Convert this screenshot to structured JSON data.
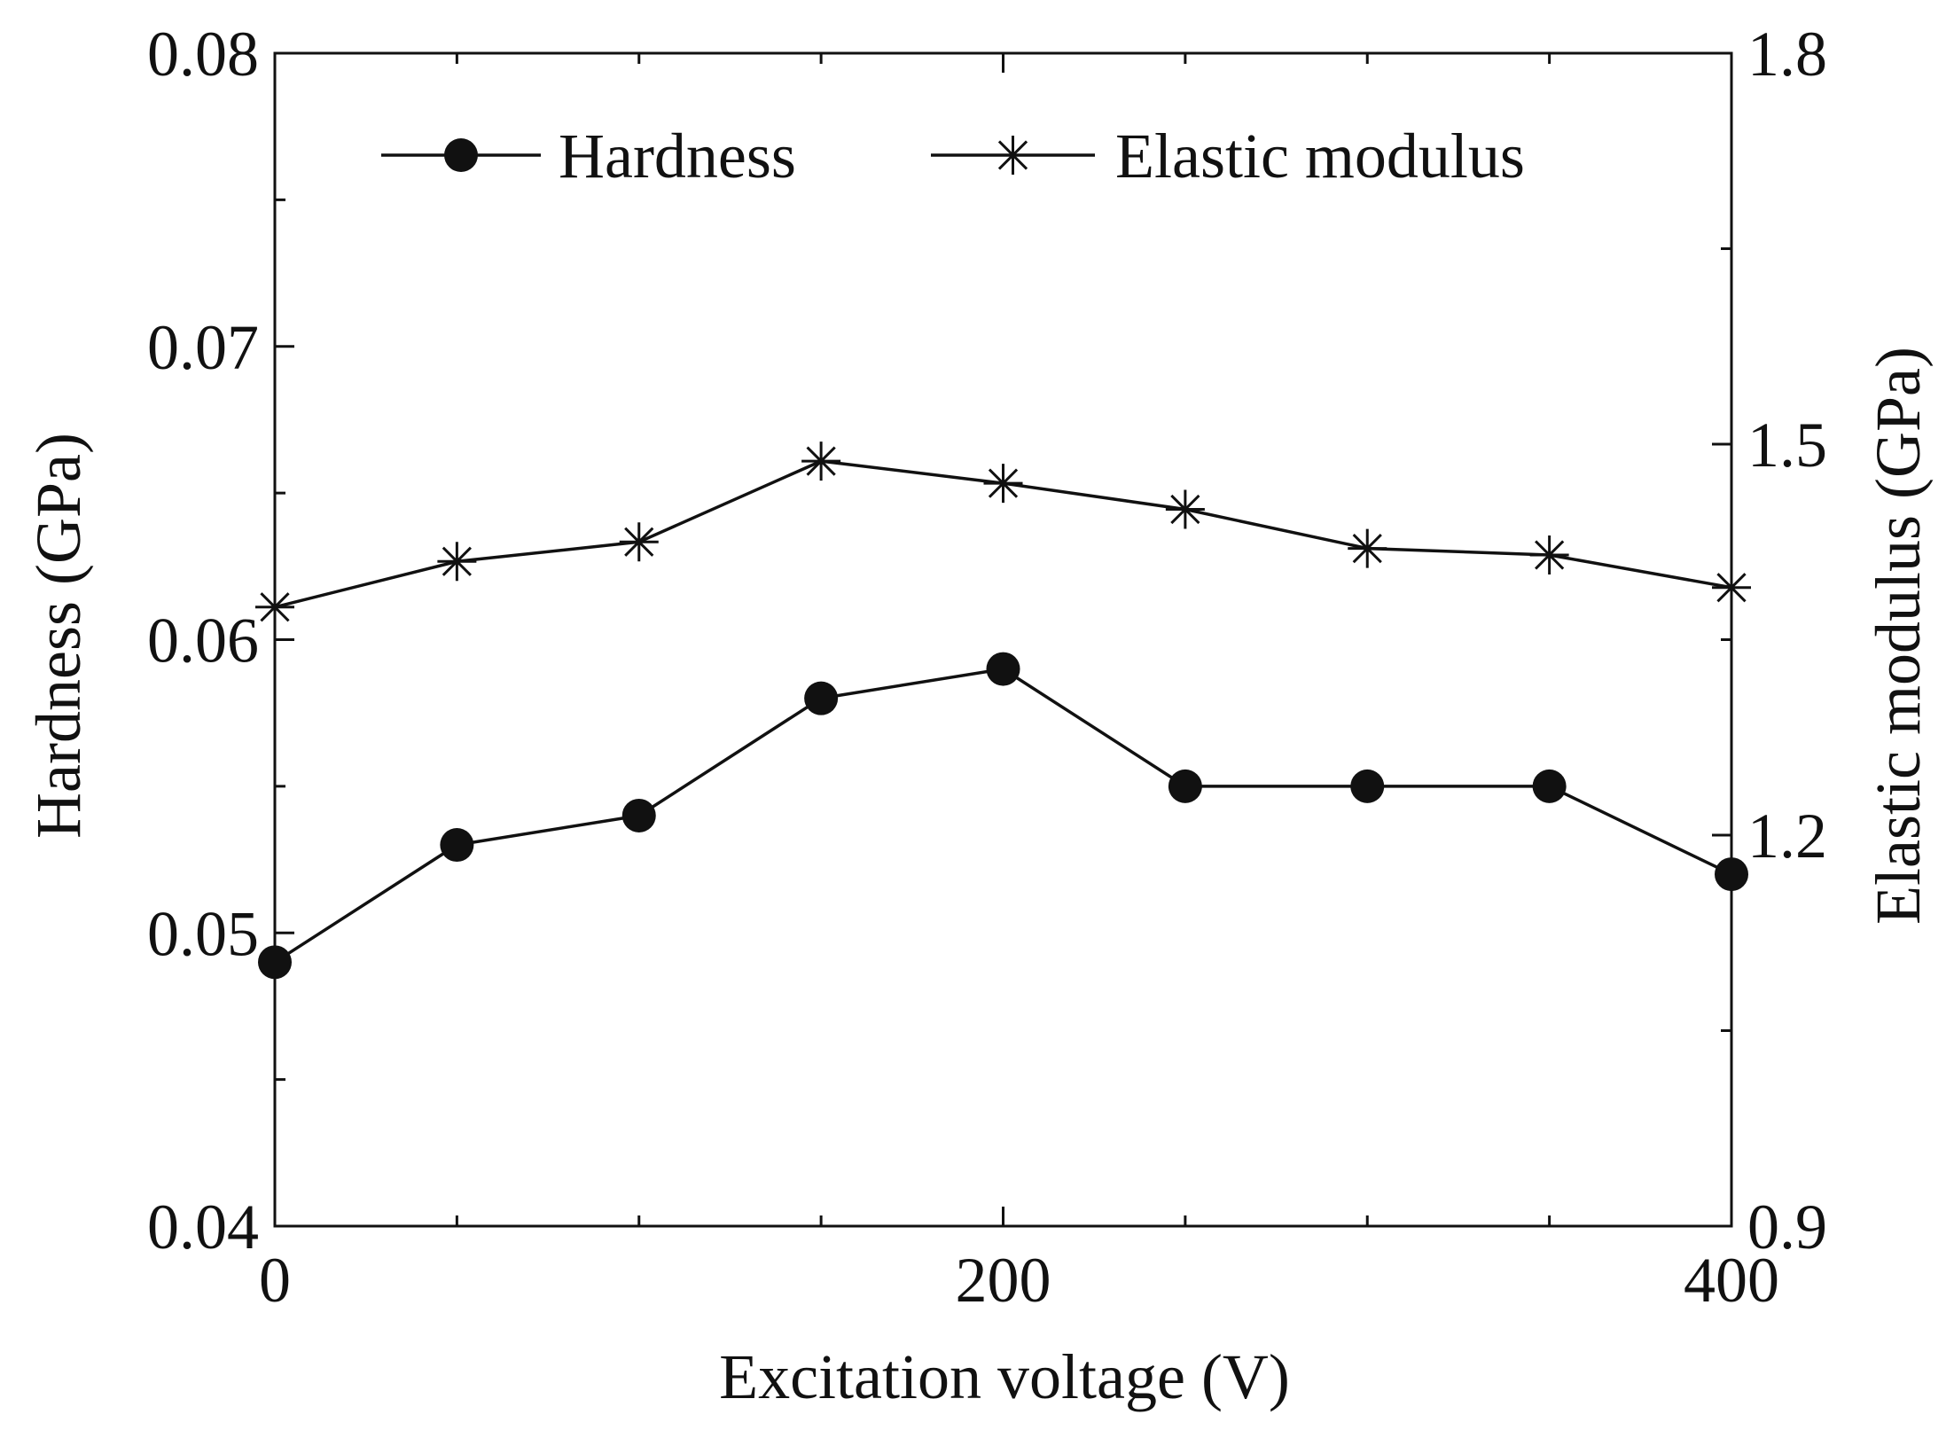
{
  "chart_data": {
    "type": "line",
    "title": "",
    "x": [
      0,
      50,
      100,
      150,
      200,
      250,
      300,
      350,
      400
    ],
    "xlabel": "Excitation voltage (V)",
    "xlim": [
      0,
      400
    ],
    "xticks": [
      0,
      200,
      400
    ],
    "xtick_labels": [
      "0",
      "200",
      "400"
    ],
    "y_left": {
      "label": "Hardness (GPa)",
      "lim": [
        0.04,
        0.08
      ],
      "ticks": [
        0.04,
        0.05,
        0.06,
        0.07,
        0.08
      ],
      "tick_labels": [
        "0.04",
        "0.05",
        "0.06",
        "0.07",
        "0.08"
      ]
    },
    "y_right": {
      "label": "Elastic modulus (GPa)",
      "lim": [
        0.9,
        1.8
      ],
      "ticks": [
        0.9,
        1.2,
        1.5,
        1.8
      ],
      "tick_labels": [
        "0.9",
        "1.2",
        "1.5",
        "1.8"
      ]
    },
    "series": [
      {
        "name": "Hardness",
        "axis": "left",
        "marker": "filled-circle",
        "values": [
          0.049,
          0.053,
          0.054,
          0.058,
          0.059,
          0.055,
          0.055,
          0.055,
          0.052
        ]
      },
      {
        "name": "Elastic modulus",
        "axis": "right",
        "marker": "asterisk",
        "values": [
          1.375,
          1.41,
          1.425,
          1.487,
          1.47,
          1.45,
          1.42,
          1.415,
          1.39
        ]
      }
    ],
    "legend": {
      "position": "top",
      "items": [
        "Hardness",
        "Elastic modulus"
      ]
    },
    "grid": false,
    "colors": {
      "line": "#111111",
      "background": "#ffffff"
    }
  }
}
